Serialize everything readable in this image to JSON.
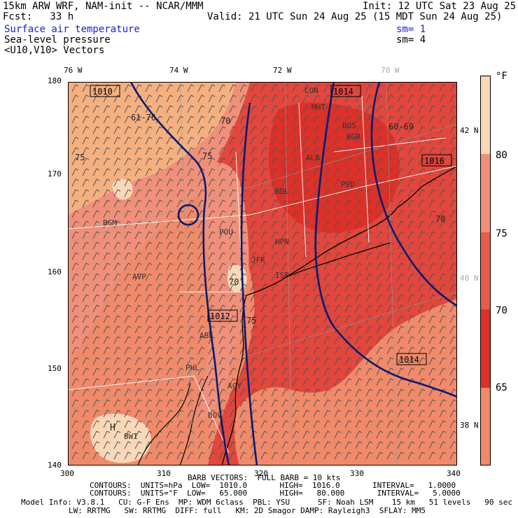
{
  "header": {
    "model": "15km ARW WRF, NAM-init -- NCAR/MMM",
    "init": "Init: 12 UTC Sat 23 Aug 25",
    "fcst": "Fcst:   33 h",
    "valid": "Valid: 21 UTC Sun 24 Aug 25 (15 MDT Sun 24 Aug 25)",
    "field1": "Surface air temperature",
    "field1_sm": "sm= 1",
    "field2": "Sea-level pressure",
    "field2_sm": "sm= 4",
    "field3": "<U10,V10> Vectors"
  },
  "map": {
    "grid_x_ticks": [
      "300",
      "310",
      "320",
      "330",
      "340"
    ],
    "grid_y_ticks": [
      "180",
      "170",
      "160",
      "150",
      "140"
    ],
    "lon_labels": [
      "76 W",
      "74 W",
      "72 W",
      "70 W"
    ],
    "lat_labels": [
      "42 N",
      "40 N",
      "38 N"
    ],
    "isobar_labels": [
      "1010",
      "1014",
      "1016",
      "1012",
      "1014"
    ],
    "temp_labels": [
      "61-76",
      "75",
      "70",
      "75",
      "60-69",
      "70",
      "75",
      "70"
    ],
    "city_labels": [
      "CON",
      "MHT",
      "BOS",
      "BGR",
      "PVD",
      "BDL",
      "ALB",
      "POU",
      "HPN",
      "ISP",
      "AVP",
      "BGM",
      "ABE",
      "PHL",
      "ACY",
      "BWI",
      "DOV",
      "JFK"
    ],
    "high_label": "H",
    "colors": {
      "t65": "#f5b080",
      "t70": "#ec7a5e",
      "t75": "#e2463c",
      "t80": "#f18a70",
      "coast": "#000000",
      "isobar": "#0a1a70",
      "border": "#ffffff"
    }
  },
  "colorbar": {
    "unit": "°F",
    "labels": [
      "80",
      "75",
      "70",
      "65"
    ],
    "colors": [
      "#f8d8b8",
      "#f0907a",
      "#e85a4a",
      "#dd3028",
      "#f08a6a",
      "#f5b080"
    ]
  },
  "footer": {
    "line1": "BARB VECTORS:  FULL BARB = 10 kts",
    "line2": "CONTOURS:  UNITS=hPa  LOW=  1010.0       HIGH=  1016.0       INTERVAL=   1.0000",
    "line3": "CONTOURS:  UNITS=°F  LOW=   65.000       HIGH=   80.000       INTERVAL=   5.0000",
    "line4": "Model Info: V3.8.1   CU: G-F Ens  MP: WDM 6class  PBL: YSU      SF: Noah LSM    15 km   51 levels   90 sec",
    "line5": "LW: RRTMG   SW: RRTMG  DIFF: full   KM: 2D Smagor DAMP: Rayleigh3  SFLAY: MM5"
  }
}
